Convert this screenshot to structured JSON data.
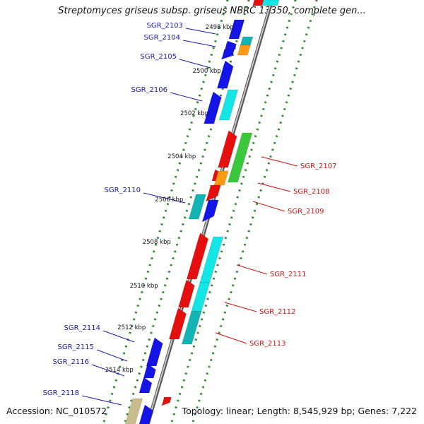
{
  "title": "Streptomyces griseus subsp. griseus NBRC 13350, complete gen...",
  "footer": {
    "accession": "Accession: NC_010572",
    "summary": "Topology: linear; Length: 8,545,929 bp; Genes: 7,222"
  },
  "colors": {
    "backbone": "#8a8a8a",
    "left_label": "#1a1aa8",
    "right_label": "#c81414",
    "track_dots": "#2e8b2e",
    "gene_blue": "#1414e6",
    "gene_red": "#e60f0f",
    "gene_cyan": "#14e6e6",
    "gene_teal": "#14b4b4",
    "gene_green": "#3cc83c",
    "gene_orange": "#ff9a14",
    "gene_tan": "#c8bc8c"
  },
  "ticks": [
    {
      "label": "2498 kbp"
    },
    {
      "label": "2500 kbp"
    },
    {
      "label": "2502 kbp"
    },
    {
      "label": "2504 kbp"
    },
    {
      "label": "2506 kbp"
    },
    {
      "label": "2508 kbp"
    },
    {
      "label": "2510 kbp"
    },
    {
      "label": "2512 kbp"
    },
    {
      "label": "2514 kbp"
    }
  ],
  "genes": [
    {
      "name": "SGR_2103",
      "side": "left"
    },
    {
      "name": "SGR_2104",
      "side": "left"
    },
    {
      "name": "SGR_2105",
      "side": "left"
    },
    {
      "name": "SGR_2106",
      "side": "left"
    },
    {
      "name": "SGR_2107",
      "side": "right"
    },
    {
      "name": "SGR_2108",
      "side": "right"
    },
    {
      "name": "SGR_2109",
      "side": "right"
    },
    {
      "name": "SGR_2110",
      "side": "left"
    },
    {
      "name": "SGR_2111",
      "side": "right"
    },
    {
      "name": "SGR_2112",
      "side": "right"
    },
    {
      "name": "SGR_2113",
      "side": "right"
    },
    {
      "name": "SGR_2114",
      "side": "left"
    },
    {
      "name": "SGR_2115",
      "side": "left"
    },
    {
      "name": "SGR_2116",
      "side": "left"
    },
    {
      "name": "SGR_2118",
      "side": "left"
    }
  ]
}
